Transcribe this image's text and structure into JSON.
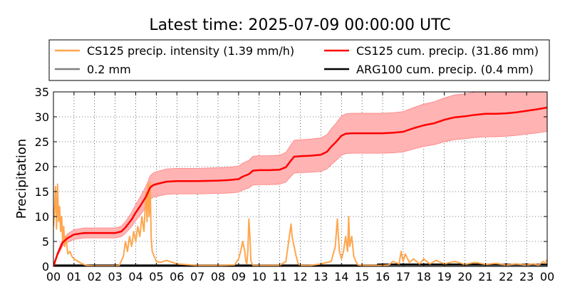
{
  "chart_data": {
    "type": "line",
    "title": "Latest time: 2025-07-09 00:00:00 UTC",
    "xlabel": "",
    "ylabel": "Precipitation",
    "xlim": [
      0,
      24
    ],
    "ylim": [
      0,
      35
    ],
    "x_tick_labels": [
      "00",
      "01",
      "02",
      "03",
      "04",
      "05",
      "06",
      "07",
      "08",
      "09",
      "10",
      "11",
      "12",
      "13",
      "14",
      "15",
      "16",
      "17",
      "18",
      "19",
      "20",
      "21",
      "22",
      "23",
      "00"
    ],
    "y_ticks": [
      0,
      5,
      10,
      15,
      20,
      25,
      30,
      35
    ],
    "grid": true,
    "legend": {
      "placement": "top",
      "entries": [
        {
          "label": "CS125 precip. intensity (1.39 mm/h)",
          "color": "#ffa64d"
        },
        {
          "label": "CS125 cum. precip. (31.86 mm)",
          "color": "#ff0000"
        },
        {
          "label": "0.2 mm",
          "color": "#808080"
        },
        {
          "label": "ARG100 cum. precip. (0.4 mm)",
          "color": "#000000"
        }
      ]
    },
    "series": [
      {
        "name": "CS125 cum. precip. (31.86 mm)",
        "color": "#ff0000",
        "band_color": "#ffb3b3",
        "band_fraction": 0.15,
        "x": [
          0,
          0.2,
          0.45,
          0.7,
          1.0,
          1.5,
          2.0,
          2.5,
          3.0,
          3.3,
          3.5,
          3.8,
          4.0,
          4.2,
          4.5,
          4.7,
          4.85,
          5.0,
          5.5,
          6.0,
          7.0,
          8.0,
          8.5,
          9.0,
          9.2,
          9.5,
          9.7,
          10.0,
          10.5,
          11.0,
          11.3,
          11.5,
          11.7,
          12.0,
          12.5,
          13.0,
          13.3,
          13.5,
          13.7,
          14.0,
          14.2,
          14.5,
          15.0,
          15.5,
          16.0,
          16.5,
          17.0,
          17.5,
          18.0,
          18.5,
          19.0,
          19.5,
          20.0,
          20.5,
          21.0,
          21.5,
          22.0,
          22.5,
          23.0,
          23.5,
          24.0
        ],
        "y": [
          0,
          2.5,
          4.8,
          5.7,
          6.4,
          6.7,
          6.7,
          6.7,
          6.7,
          7.0,
          7.8,
          9.4,
          10.8,
          12.0,
          14.0,
          15.8,
          16.3,
          16.5,
          17.0,
          17.1,
          17.1,
          17.2,
          17.3,
          17.5,
          18.0,
          18.5,
          19.2,
          19.3,
          19.3,
          19.4,
          19.9,
          21.0,
          22.0,
          22.1,
          22.2,
          22.4,
          23.0,
          24.0,
          24.8,
          26.2,
          26.6,
          26.7,
          26.7,
          26.7,
          26.7,
          26.8,
          27.0,
          27.7,
          28.3,
          28.7,
          29.4,
          29.9,
          30.1,
          30.4,
          30.6,
          30.6,
          30.7,
          30.9,
          31.2,
          31.5,
          31.86
        ]
      },
      {
        "name": "ARG100 cum. precip. (0.4 mm)",
        "color": "#000000",
        "x": [
          0,
          15.75,
          15.76,
          24
        ],
        "y": [
          0.2,
          0.2,
          0.4,
          0.4
        ]
      },
      {
        "name": "0.2 mm",
        "color": "#808080",
        "x": [
          0,
          24
        ],
        "y": [
          0.2,
          0.2
        ]
      },
      {
        "name": "CS125 precip. intensity (1.39 mm/h)",
        "color": "#ffa64d",
        "x": [
          0,
          0.05,
          0.1,
          0.15,
          0.2,
          0.25,
          0.3,
          0.35,
          0.4,
          0.45,
          0.5,
          0.55,
          0.6,
          0.7,
          0.8,
          0.9,
          1.0,
          1.2,
          1.4,
          1.6,
          2.0,
          2.5,
          3.0,
          3.2,
          3.4,
          3.5,
          3.6,
          3.7,
          3.8,
          3.9,
          4.0,
          4.1,
          4.2,
          4.3,
          4.4,
          4.5,
          4.55,
          4.6,
          4.65,
          4.7,
          4.75,
          4.8,
          4.9,
          5.0,
          5.2,
          5.5,
          6.0,
          7.0,
          8.0,
          8.8,
          9.0,
          9.1,
          9.2,
          9.3,
          9.35,
          9.4,
          9.45,
          9.5,
          9.55,
          9.6,
          9.7,
          10.0,
          11.0,
          11.3,
          11.4,
          11.5,
          11.55,
          11.6,
          11.7,
          11.8,
          11.9,
          12.0,
          12.5,
          13.0,
          13.5,
          13.7,
          13.8,
          13.85,
          13.9,
          14.0,
          14.1,
          14.2,
          14.3,
          14.35,
          14.4,
          14.5,
          14.6,
          14.7,
          14.8,
          15.0,
          15.5,
          16.0,
          16.3,
          16.5,
          16.8,
          16.9,
          17.0,
          17.1,
          17.3,
          17.5,
          17.8,
          18.0,
          18.3,
          18.6,
          19.0,
          19.5,
          20.0,
          20.5,
          21.0,
          21.5,
          22.0,
          22.5,
          23.0,
          23.3,
          23.6,
          23.8,
          23.9,
          24.0
        ],
        "y": [
          8,
          11,
          16,
          7.5,
          16.5,
          9,
          12,
          7,
          10,
          5,
          8,
          4,
          6,
          2.5,
          3,
          2,
          1.5,
          1,
          0.5,
          0.2,
          0.1,
          0.1,
          0.1,
          0.2,
          2,
          5,
          3,
          6,
          4,
          7,
          5,
          8,
          6,
          10,
          7,
          15,
          9,
          16.5,
          10,
          17,
          6,
          3,
          2,
          1,
          0.8,
          1.2,
          0.5,
          0.2,
          0.2,
          0.3,
          1.5,
          3,
          5,
          3,
          1,
          0.5,
          3,
          9.5,
          6,
          1,
          0.2,
          0.2,
          0.2,
          1,
          4,
          7,
          8.5,
          6,
          4,
          2,
          0.5,
          0.2,
          0.2,
          0.5,
          1,
          4,
          9.5,
          6,
          3,
          1.5,
          3,
          6,
          3,
          10,
          4,
          6,
          2,
          1,
          0.3,
          0.2,
          0.2,
          0.2,
          0.3,
          1,
          0.5,
          3,
          1,
          2.5,
          0.8,
          1.5,
          0.5,
          1.5,
          0.5,
          1.2,
          0.5,
          1,
          0.4,
          0.8,
          0.4,
          0.6,
          0.3,
          0.5,
          0.3,
          0.5,
          0.3,
          1,
          0.6,
          1.39
        ]
      }
    ]
  }
}
